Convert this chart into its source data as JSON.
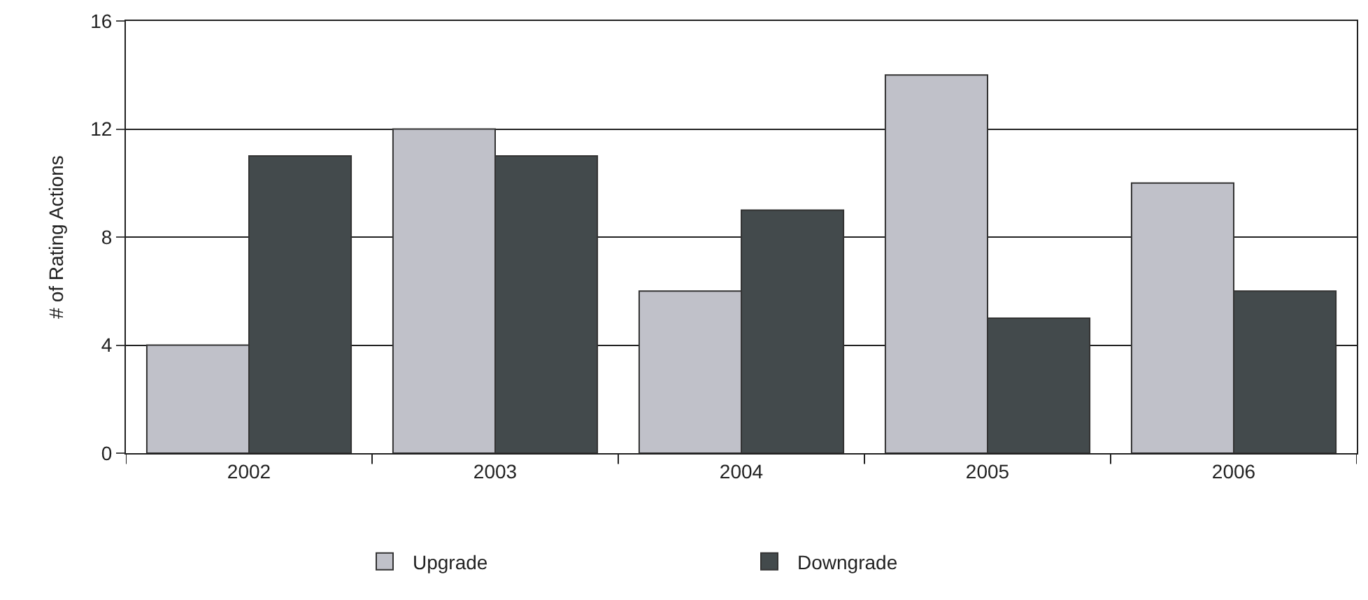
{
  "chart_data": {
    "type": "bar",
    "ylabel": "# of Rating Actions",
    "categories": [
      "2002",
      "2003",
      "2004",
      "2005",
      "2006"
    ],
    "series": [
      {
        "name": "Upgrade",
        "color": "#c0c1c9",
        "values": [
          4,
          12,
          6,
          14,
          10
        ]
      },
      {
        "name": "Downgrade",
        "color": "#434a4c",
        "values": [
          11,
          11,
          9,
          5,
          6
        ]
      }
    ],
    "ylim": [
      0,
      16
    ],
    "yticks": [
      0,
      4,
      8,
      12,
      16
    ],
    "grid": "y",
    "legend": "bottom"
  }
}
